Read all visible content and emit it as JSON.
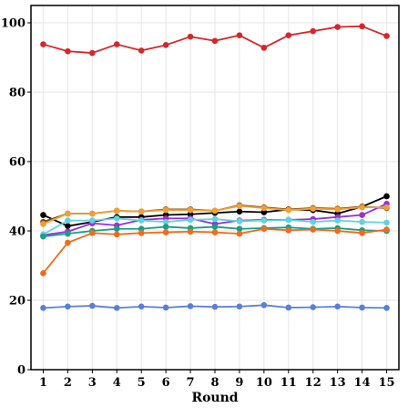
{
  "chart_data": {
    "type": "line",
    "xlabel": "Round",
    "ylabel": "",
    "title": "",
    "x": [
      1,
      2,
      3,
      4,
      5,
      6,
      7,
      8,
      9,
      10,
      11,
      12,
      13,
      14,
      15
    ],
    "xlim": [
      0.5,
      15.5
    ],
    "ylim": [
      0,
      105
    ],
    "yticks": [
      0,
      20,
      40,
      60,
      80,
      100
    ],
    "grid": true,
    "series": [
      {
        "color": "#d62728",
        "values": [
          93.8,
          91.8,
          91.3,
          93.8,
          92.0,
          93.6,
          96.0,
          94.8,
          96.4,
          92.8,
          96.4,
          97.6,
          98.8,
          99.0,
          96.2
        ]
      },
      {
        "color": "#000000",
        "values": [
          44.6,
          41.4,
          42.6,
          44.0,
          44.0,
          44.6,
          44.8,
          45.2,
          45.6,
          45.4,
          46.2,
          46.0,
          45.0,
          47.0,
          50.0
        ]
      },
      {
        "color": "#8b4513",
        "values": [
          42.6,
          45.0,
          45.0,
          45.8,
          45.6,
          46.2,
          46.2,
          45.8,
          47.4,
          46.8,
          46.2,
          46.6,
          46.4,
          47.0,
          46.6
        ]
      },
      {
        "color": "#9b30d9",
        "values": [
          38.8,
          39.8,
          42.2,
          41.6,
          43.2,
          43.6,
          43.6,
          42.0,
          43.0,
          43.2,
          43.2,
          43.4,
          44.0,
          44.6,
          47.8
        ]
      },
      {
        "color": "#f0a030",
        "values": [
          42.0,
          45.0,
          45.0,
          45.8,
          45.6,
          46.0,
          46.0,
          45.8,
          47.2,
          46.6,
          46.0,
          46.4,
          46.2,
          46.8,
          46.8
        ]
      },
      {
        "color": "#5fd3e0",
        "values": [
          39.0,
          43.0,
          43.0,
          43.6,
          43.0,
          42.6,
          43.2,
          43.4,
          42.8,
          43.0,
          43.2,
          42.6,
          43.0,
          42.6,
          42.4
        ]
      },
      {
        "color": "#17a085",
        "values": [
          38.4,
          39.2,
          40.0,
          40.6,
          40.6,
          41.2,
          40.8,
          41.2,
          40.6,
          40.8,
          41.0,
          40.6,
          40.8,
          40.2,
          40.0
        ]
      },
      {
        "color": "#f26a1b",
        "values": [
          27.8,
          36.6,
          39.4,
          39.0,
          39.4,
          39.6,
          39.8,
          39.6,
          39.2,
          40.6,
          40.2,
          40.4,
          40.0,
          39.4,
          40.4
        ]
      },
      {
        "color": "#5b7fd6",
        "values": [
          17.8,
          18.2,
          18.4,
          17.8,
          18.2,
          17.9,
          18.3,
          18.1,
          18.2,
          18.6,
          17.9,
          18.0,
          18.2,
          17.9,
          17.8
        ]
      }
    ]
  }
}
